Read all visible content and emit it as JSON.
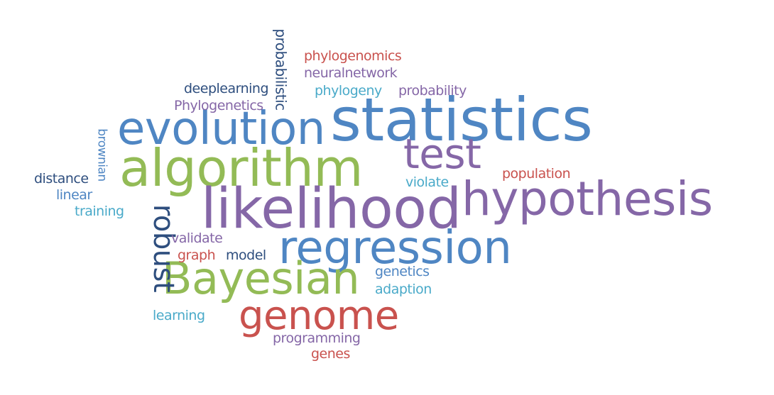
{
  "words": {
    "statistics": "statistics",
    "evolution": "evolution",
    "algorithm": "algorithm",
    "test": "test",
    "likelihood": "likelihood",
    "hypothesis": "hypothesis",
    "regression": "regression",
    "bayesian": "Bayesian",
    "genome": "genome",
    "robust": "robust",
    "probabilistic": "probabilistic",
    "brownian": "brownian",
    "phylogenomics": "phylogenomics",
    "neuralnetwork": "neuralnetwork",
    "phylogeny": "phylogeny",
    "probability": "probability",
    "deeplearning": "deeplearning",
    "phylogenetics": "Phylogenetics",
    "distance": "distance",
    "linear": "linear",
    "training": "training",
    "validate": "validate",
    "graph": "graph",
    "model": "model",
    "population": "population",
    "violate": "violate",
    "genetics": "genetics",
    "adaption": "adaption",
    "learning": "learning",
    "programming": "programming",
    "genes": "genes"
  },
  "colors": {
    "blue": "#4f86c3",
    "green": "#93bb56",
    "purple": "#8567a7",
    "red": "#c9524e",
    "navy": "#2e4e7e",
    "cyan": "#4aaac9"
  }
}
